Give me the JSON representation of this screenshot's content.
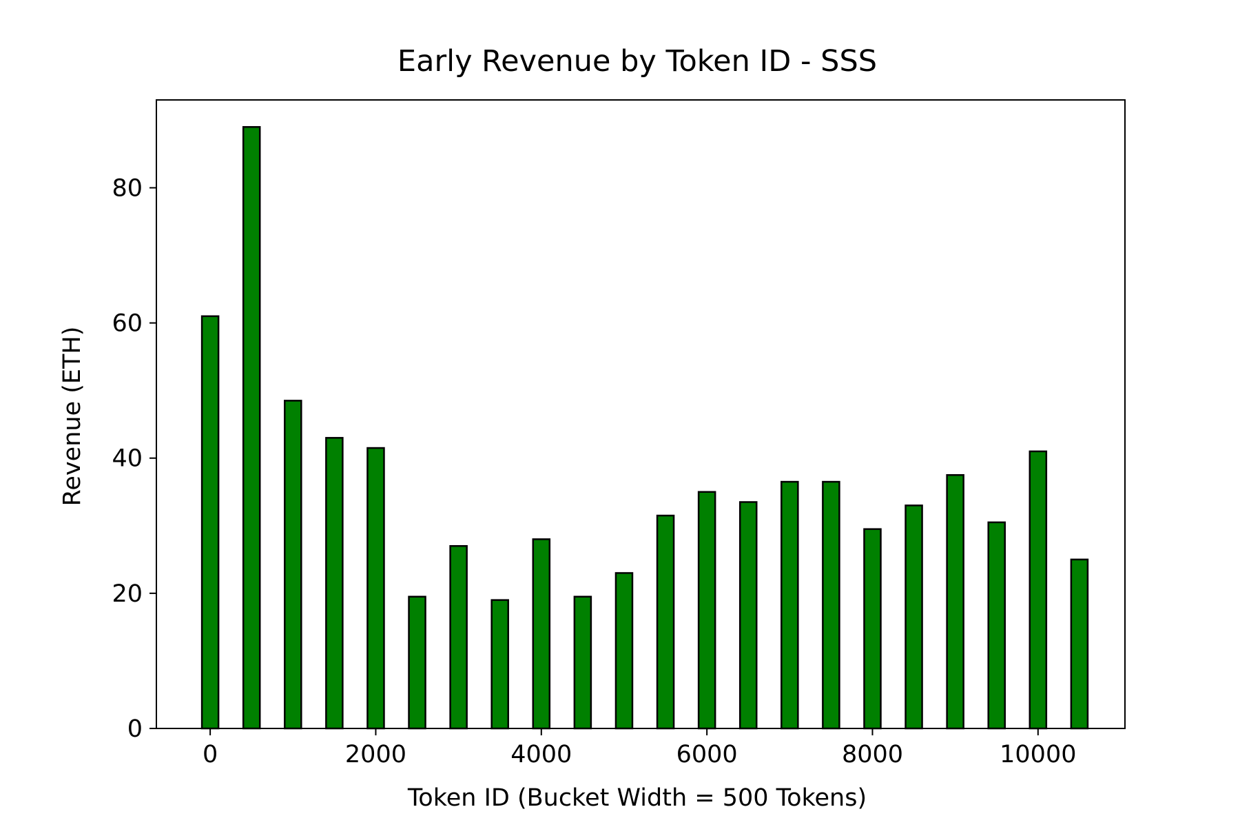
{
  "chart_data": {
    "type": "bar",
    "title": "Early Revenue by Token ID - SSS",
    "xlabel": "Token ID (Bucket Width = 500 Tokens)",
    "ylabel": "Revenue (ETH)",
    "x": [
      0,
      500,
      1000,
      1500,
      2000,
      2500,
      3000,
      3500,
      4000,
      4500,
      5000,
      5500,
      6000,
      6500,
      7000,
      7500,
      8000,
      8500,
      9000,
      9500,
      10000,
      10500
    ],
    "values": [
      61.0,
      89.0,
      48.5,
      43.0,
      41.5,
      19.5,
      27.0,
      19.0,
      28.0,
      19.5,
      23.0,
      31.5,
      35.0,
      33.5,
      36.5,
      36.5,
      29.5,
      33.0,
      37.5,
      30.5,
      41.0,
      25.0
    ],
    "xlim": [
      -650,
      11050
    ],
    "ylim": [
      0,
      93
    ],
    "xticks": [
      0,
      2000,
      4000,
      6000,
      8000,
      10000
    ],
    "xtick_labels": [
      "0",
      "2000",
      "4000",
      "6000",
      "8000",
      "10000"
    ],
    "yticks": [
      0,
      20,
      40,
      60,
      80
    ],
    "ytick_labels": [
      "0",
      "20",
      "40",
      "60",
      "80"
    ],
    "bar_color": "#008000",
    "edge_color": "#000000",
    "grid": false,
    "legend": "none"
  }
}
